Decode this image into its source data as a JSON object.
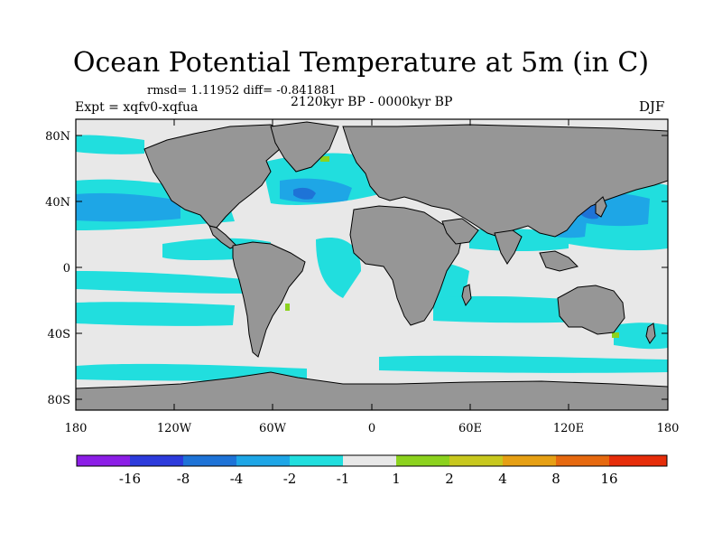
{
  "title": "Ocean Potential Temperature at 5m (in C)",
  "stats": "rmsd= 1.11952 diff= -0.841881",
  "expt": "Expt = xqfv0-xqfua",
  "period": "2120kyr BP - 0000kyr BP",
  "season": "DJF",
  "axes": {
    "lat_labels": [
      "80N",
      "40N",
      "0",
      "40S",
      "80S"
    ],
    "lon_labels": [
      "180",
      "120W",
      "60W",
      "0",
      "60E",
      "120E",
      "180"
    ]
  },
  "colorbar": {
    "colors": [
      "#8c1ee6",
      "#2d3bdc",
      "#1e73d7",
      "#1ea6e6",
      "#21dede",
      "#e8e8e8",
      "#8cd21e",
      "#c8c81e",
      "#e6a014",
      "#e6690f",
      "#e62d0a"
    ],
    "labels": [
      "-16",
      "-8",
      "-4",
      "-2",
      "-1",
      "1",
      "2",
      "4",
      "8",
      "16"
    ]
  },
  "colors": {
    "land": "#969696",
    "ocean_neutral": "#e8e8e8",
    "cool": "#21dede",
    "cooler": "#1ea6e6",
    "coolest": "#1e73d7",
    "warm": "#8cd21e"
  }
}
